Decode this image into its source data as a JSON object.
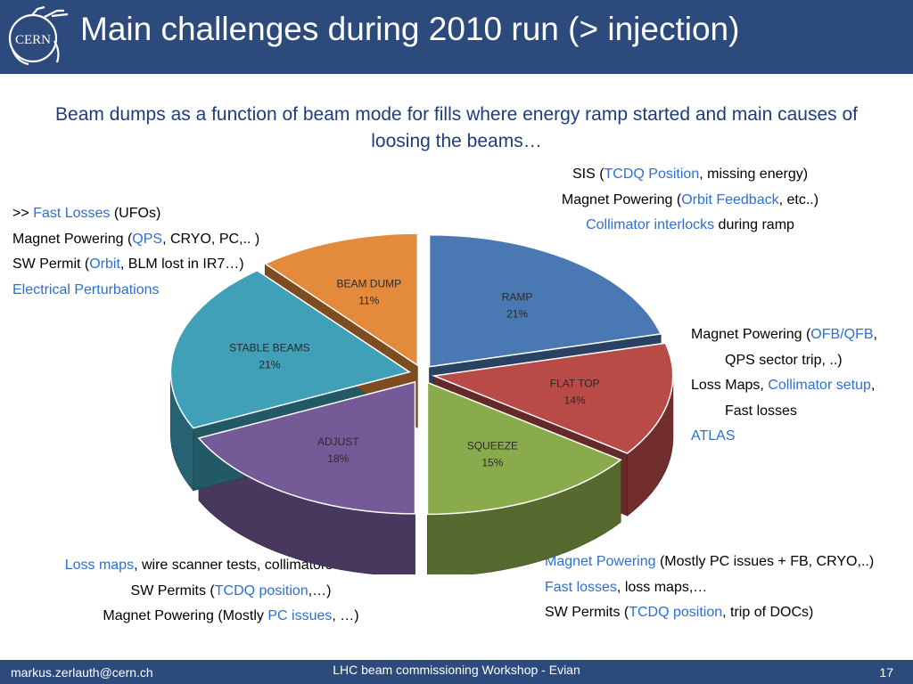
{
  "header": {
    "title": "Main challenges during 2010 run (> injection)",
    "logo_text": "CERN"
  },
  "subtitle": "Beam dumps as a function of beam mode for fills where energy ramp started and main causes of loosing the beams…",
  "colors": {
    "header_bg": "#2d4a7d",
    "highlight": "#2d6fd2",
    "subtitle": "#1f3d7a"
  },
  "notes": {
    "top_right": [
      [
        {
          "t": "SIS ("
        },
        {
          "t": "TCDQ Position",
          "hl": true
        },
        {
          "t": ", missing energy)"
        }
      ],
      [
        {
          "t": "Magnet Powering ("
        },
        {
          "t": "Orbit Feedback",
          "hl": true
        },
        {
          "t": ", etc..)"
        }
      ],
      [
        {
          "t": "Collimator interlocks",
          "hl": true
        },
        {
          "t": " during ramp"
        }
      ]
    ],
    "left": [
      [
        {
          "t": ">> "
        },
        {
          "t": "Fast Losses",
          "hl": true
        },
        {
          "t": " (UFOs)"
        }
      ],
      [
        {
          "t": "Magnet Powering ("
        },
        {
          "t": "QPS",
          "hl": true
        },
        {
          "t": ", CRYO, PC,.. )"
        }
      ],
      [
        {
          "t": "SW Permit ("
        },
        {
          "t": "Orbit",
          "hl": true
        },
        {
          "t": ", BLM lost in IR7…)"
        }
      ],
      [
        {
          "t": "Electrical Perturbations",
          "hl": true
        }
      ]
    ],
    "right": [
      [
        {
          "t": "Magnet Powering ("
        },
        {
          "t": "OFB/QFB",
          "hl": true
        },
        {
          "t": ","
        }
      ],
      [
        {
          "t": "QPS sector trip, ..)",
          "indent": true
        }
      ],
      [
        {
          "t": "Loss Maps, "
        },
        {
          "t": "Collimator setup",
          "hl": true
        },
        {
          "t": ","
        }
      ],
      [
        {
          "t": "Fast losses",
          "indent": true
        }
      ],
      [
        {
          "t": "ATLAS",
          "hl": true
        }
      ]
    ],
    "bottom_left": [
      [
        {
          "t": "Loss maps",
          "hl": true
        },
        {
          "t": ", wire scanner tests, collimators moving…"
        }
      ],
      [
        {
          "t": "SW Permits ("
        },
        {
          "t": "TCDQ position",
          "hl": true
        },
        {
          "t": ",…)"
        }
      ],
      [
        {
          "t": "Magnet Powering (Mostly "
        },
        {
          "t": "PC issues",
          "hl": true
        },
        {
          "t": ", …)"
        }
      ]
    ],
    "bottom_right": [
      [
        {
          "t": "Magnet Powering",
          "hl": true
        },
        {
          "t": " (Mostly PC issues + FB, CRYO,..)"
        }
      ],
      [
        {
          "t": "Fast losses",
          "hl": true
        },
        {
          "t": ", loss maps,…"
        }
      ],
      [
        {
          "t": "SW Permits ("
        },
        {
          "t": "TCDQ position",
          "hl": true
        },
        {
          "t": ", trip of DOCs)"
        }
      ]
    ]
  },
  "chart_data": {
    "type": "pie",
    "style": "3d-exploded",
    "slices": [
      {
        "label": "RAMP",
        "value": 21,
        "value_label": "21%",
        "color": "#4a78b3"
      },
      {
        "label": "FLAT TOP",
        "value": 14,
        "value_label": "14%",
        "color": "#b84a47"
      },
      {
        "label": "SQUEEZE",
        "value": 15,
        "value_label": "15%",
        "color": "#8aab4c"
      },
      {
        "label": "ADJUST",
        "value": 18,
        "value_label": "18%",
        "color": "#745b97"
      },
      {
        "label": "STABLE BEAMS",
        "value": 21,
        "value_label": "21%",
        "color": "#3fa0b8"
      },
      {
        "label": "BEAM DUMP",
        "value": 11,
        "value_label": "11%",
        "color": "#e48a3c"
      }
    ]
  },
  "footer": {
    "email": "markus.zerlauth@cern.ch",
    "event": "LHC beam commissioning Workshop - Evian",
    "page": "17"
  }
}
